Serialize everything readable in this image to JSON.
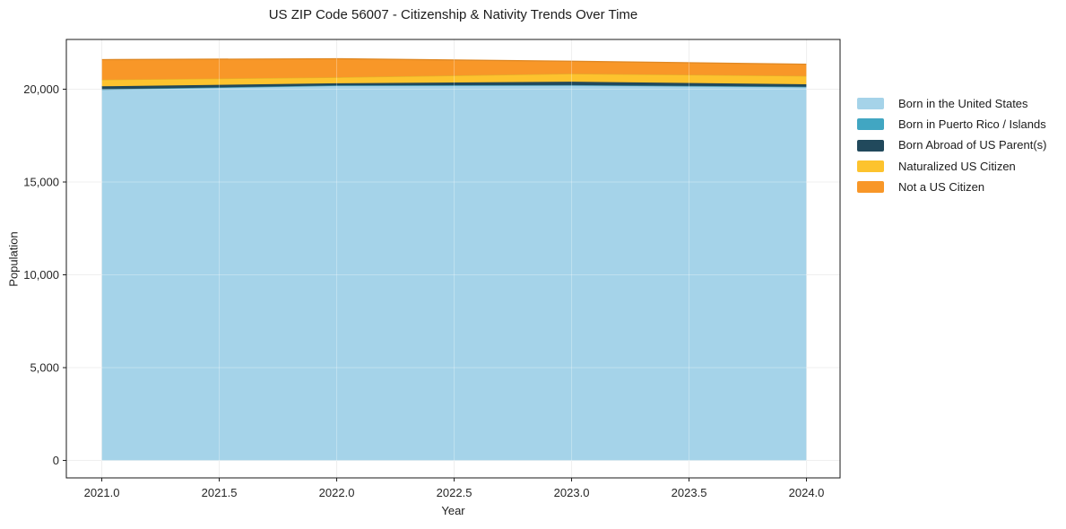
{
  "figure": {
    "title": "US ZIP Code 56007 - Citizenship & Nativity Trends Over Time",
    "xlabel": "Year",
    "ylabel": "Population"
  },
  "chart_data": {
    "type": "area",
    "stacked": true,
    "title": "US ZIP Code 56007 - Citizenship & Nativity Trends Over Time",
    "xlabel": "Year",
    "ylabel": "Population",
    "x": [
      2021,
      2022,
      2023,
      2024
    ],
    "series": [
      {
        "name": "Born in the United States",
        "color": "#A5D3E9",
        "values": [
          19980,
          20190,
          20200,
          20120
        ]
      },
      {
        "name": "Born in Puerto Rico / Islands",
        "color": "#41A6C2",
        "values": [
          15,
          15,
          20,
          15
        ]
      },
      {
        "name": "Born Abroad of US Parent(s)",
        "color": "#21495C",
        "values": [
          160,
          115,
          185,
          130
        ]
      },
      {
        "name": "Naturalized US Citizen",
        "color": "#FDC32E",
        "values": [
          355,
          320,
          430,
          450
        ]
      },
      {
        "name": "Not a US Citizen",
        "color": "#F89728",
        "values": [
          1085,
          1000,
          670,
          630
        ]
      }
    ],
    "totals": [
      21595,
      21640,
      21505,
      21345
    ],
    "xlim": [
      2020.849,
      2024.143
    ],
    "ylim": [
      -940,
      22680
    ],
    "xticks": {
      "values": [
        2021.0,
        2021.5,
        2022.0,
        2022.5,
        2023.0,
        2023.5,
        2024.0
      ],
      "labels": [
        "2021.0",
        "2021.5",
        "2022.0",
        "2022.5",
        "2023.0",
        "2023.5",
        "2024.0"
      ]
    },
    "yticks": {
      "values": [
        0,
        5000,
        10000,
        15000,
        20000
      ],
      "labels": [
        "0",
        "5,000",
        "10,000",
        "15,000",
        "20,000"
      ]
    },
    "grid": true,
    "legend_position": "right",
    "colors": {
      "grid": "#e8e8e8",
      "spine": "#1a1a1a",
      "tick_text": "#262626"
    }
  }
}
